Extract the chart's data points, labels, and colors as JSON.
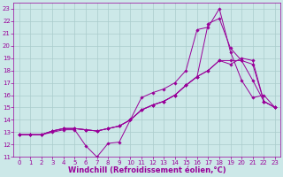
{
  "xlabel": "Windchill (Refroidissement éolien,°C)",
  "background_color": "#cce8e8",
  "grid_color": "#aacccc",
  "line_color": "#990099",
  "xlim": [
    -0.5,
    23.5
  ],
  "ylim": [
    11,
    23.5
  ],
  "xticks": [
    0,
    1,
    2,
    3,
    4,
    5,
    6,
    7,
    8,
    9,
    10,
    11,
    12,
    13,
    14,
    15,
    16,
    17,
    18,
    19,
    20,
    21,
    22,
    23
  ],
  "yticks": [
    11,
    12,
    13,
    14,
    15,
    16,
    17,
    18,
    19,
    20,
    21,
    22,
    23
  ],
  "line1_x": [
    0,
    1,
    2,
    3,
    4,
    5,
    6,
    7,
    8,
    9,
    10,
    11,
    12,
    13,
    14,
    15,
    16,
    17,
    18,
    19,
    20,
    21,
    22,
    23
  ],
  "line1_y": [
    12.8,
    12.8,
    12.8,
    13.0,
    13.2,
    13.2,
    11.9,
    11.0,
    12.1,
    12.2,
    14.0,
    15.8,
    16.2,
    16.5,
    17.0,
    18.0,
    21.3,
    21.5,
    23.0,
    19.5,
    17.2,
    15.8,
    16.0,
    15.0
  ],
  "line2_x": [
    0,
    1,
    2,
    3,
    4,
    5,
    6,
    7,
    8,
    9,
    10,
    11,
    12,
    13,
    14,
    15,
    16,
    17,
    18,
    19,
    20,
    21,
    22,
    23
  ],
  "line2_y": [
    12.8,
    12.8,
    12.8,
    13.1,
    13.3,
    13.3,
    13.2,
    13.1,
    13.3,
    13.5,
    14.0,
    14.8,
    15.2,
    15.5,
    16.0,
    16.8,
    17.5,
    21.8,
    22.2,
    19.8,
    18.8,
    17.2,
    15.5,
    15.0
  ],
  "line3_x": [
    0,
    1,
    2,
    3,
    4,
    5,
    6,
    7,
    8,
    9,
    10,
    11,
    12,
    13,
    14,
    15,
    16,
    17,
    18,
    19,
    20,
    21,
    22,
    23
  ],
  "line3_y": [
    12.8,
    12.8,
    12.8,
    13.1,
    13.3,
    13.3,
    13.2,
    13.1,
    13.3,
    13.5,
    14.0,
    14.8,
    15.2,
    15.5,
    16.0,
    16.8,
    17.5,
    18.0,
    18.8,
    18.8,
    18.8,
    18.5,
    15.5,
    15.0
  ],
  "line4_x": [
    0,
    1,
    2,
    3,
    4,
    5,
    6,
    7,
    8,
    9,
    10,
    11,
    12,
    13,
    14,
    15,
    16,
    17,
    18,
    19,
    20,
    21,
    22,
    23
  ],
  "line4_y": [
    12.8,
    12.8,
    12.8,
    13.1,
    13.3,
    13.3,
    13.2,
    13.1,
    13.3,
    13.5,
    14.0,
    14.8,
    15.2,
    15.5,
    16.0,
    16.8,
    17.5,
    18.0,
    18.8,
    18.5,
    19.0,
    18.8,
    15.5,
    15.0
  ],
  "tick_fontsize": 5.0,
  "xlabel_fontsize": 6.0
}
